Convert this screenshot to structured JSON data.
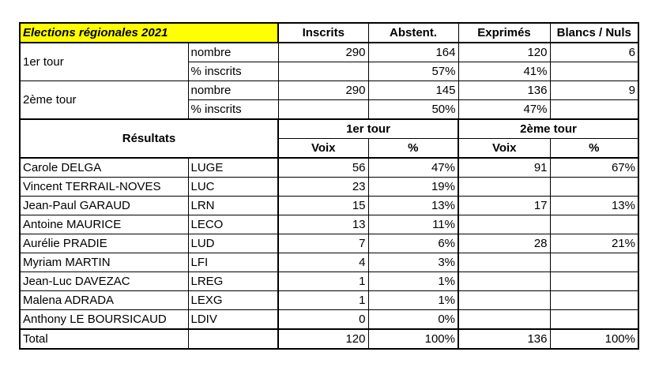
{
  "title": "Elections régionales 2021",
  "headers": {
    "inscrits": "Inscrits",
    "abstent": "Abstent.",
    "exprimes": "Exprimés",
    "blancs": "Blancs / Nuls"
  },
  "summary": {
    "tour1": {
      "label": "1er tour",
      "nombre": {
        "label": "nombre",
        "inscrits": "290",
        "abstent": "164",
        "exprimes": "120",
        "blancs": "6"
      },
      "pct": {
        "label": "% inscrits",
        "inscrits": "",
        "abstent": "57%",
        "exprimes": "41%",
        "blancs": ""
      }
    },
    "tour2": {
      "label": "2ème tour",
      "nombre": {
        "label": "nombre",
        "inscrits": "290",
        "abstent": "145",
        "exprimes": "136",
        "blancs": "9"
      },
      "pct": {
        "label": "% inscrits",
        "inscrits": "",
        "abstent": "50%",
        "exprimes": "47%",
        "blancs": ""
      }
    }
  },
  "results_header": {
    "label": "Résultats",
    "tour1": "1er tour",
    "tour2": "2ème tour",
    "voix": "Voix",
    "pct": "%"
  },
  "candidates": [
    {
      "name": "Carole DELGA",
      "list": "LUGE",
      "v1": "56",
      "p1": "47%",
      "v2": "91",
      "p2": "67%"
    },
    {
      "name": "Vincent TERRAIL-NOVES",
      "list": "LUC",
      "v1": "23",
      "p1": "19%",
      "v2": "",
      "p2": ""
    },
    {
      "name": "Jean-Paul GARAUD",
      "list": "LRN",
      "v1": "15",
      "p1": "13%",
      "v2": "17",
      "p2": "13%"
    },
    {
      "name": "Antoine MAURICE",
      "list": "LECO",
      "v1": "13",
      "p1": "11%",
      "v2": "",
      "p2": ""
    },
    {
      "name": "Aurélie PRADIE",
      "list": "LUD",
      "v1": "7",
      "p1": "6%",
      "v2": "28",
      "p2": "21%"
    },
    {
      "name": "Myriam MARTIN",
      "list": "LFI",
      "v1": "4",
      "p1": "3%",
      "v2": "",
      "p2": ""
    },
    {
      "name": "Jean-Luc DAVEZAC",
      "list": "LREG",
      "v1": "1",
      "p1": "1%",
      "v2": "",
      "p2": ""
    },
    {
      "name": "Malena ADRADA",
      "list": "LEXG",
      "v1": "1",
      "p1": "1%",
      "v2": "",
      "p2": ""
    },
    {
      "name": "Anthony LE BOURSICAUD",
      "list": "LDIV",
      "v1": "0",
      "p1": "0%",
      "v2": "",
      "p2": ""
    }
  ],
  "total": {
    "label": "Total",
    "list": "",
    "v1": "120",
    "p1": "100%",
    "v2": "136",
    "p2": "100%"
  },
  "colors": {
    "title_bg": "#ffff00"
  }
}
